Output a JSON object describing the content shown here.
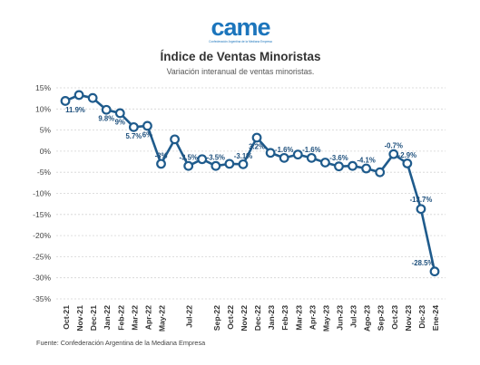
{
  "logo": {
    "wordmark": "came",
    "tagline": "Confederación Argentina de la Mediana Empresa"
  },
  "footer": {
    "source": "Fuente: Confederación Argentina de la Mediana Empresa"
  },
  "colors": {
    "line": "#1f5b8c",
    "marker_fill": "#ffffff",
    "label": "#1d4f7c",
    "grid": "#d4d4d4",
    "logo": "#1c75bc"
  },
  "chart_data": {
    "type": "line",
    "title": "Índice de Ventas Minoristas",
    "subtitle": "Variación interanual de ventas minoristas.",
    "xlabel": "",
    "ylabel": "",
    "categories": [
      "Oct-21",
      "Nov-21",
      "Dec-21",
      "Jan-22",
      "Feb-22",
      "Mar-22",
      "Apr-22",
      "May-22",
      "",
      "Jul-22",
      "",
      "Sep-22",
      "Oct-22",
      "Nov-22",
      "Dec-22",
      "Jan-23",
      "Feb-23",
      "Mar-23",
      "Apr-23",
      "May-23",
      "Jun-23",
      "Jul-23",
      "Ago-23",
      "Sep-23",
      "Oct-23",
      "Nov-23",
      "Dic-23",
      "Ene-24"
    ],
    "series": [
      {
        "values": [
          11.9,
          13.3,
          12.6,
          9.8,
          9,
          5.7,
          6,
          -3,
          2.8,
          -3.5,
          -1.9,
          -3.5,
          -3,
          -3.1,
          3.2,
          -0.4,
          -1.6,
          -0.8,
          -1.6,
          -2.7,
          -3.6,
          -3.5,
          -4.1,
          -5,
          -0.7,
          -2.9,
          -13.7,
          -28.5
        ],
        "data_labels": [
          "11.9%",
          "",
          "",
          "9.8%",
          "9%",
          "5.7%",
          "6%",
          "-3%",
          "",
          "-3.5%",
          "",
          "-3.5%",
          "",
          "-3.1%",
          "3.2%",
          "",
          "-1.6%",
          "",
          "-1.6%",
          "",
          "-3.6%",
          "",
          "-4.1%",
          "",
          "-0.7%",
          "-2.9%",
          "-13.7%",
          "-28.5%"
        ]
      }
    ],
    "ylim": [
      -35,
      15
    ],
    "y_ticks": [
      15,
      10,
      5,
      0,
      -5,
      -10,
      -15,
      -20,
      -25,
      -30,
      -35
    ],
    "y_tick_labels": [
      "15%",
      "10%",
      "5%",
      "0%",
      "-5%",
      "-10%",
      "-15%",
      "-20%",
      "-25%",
      "-30%",
      "-35%"
    ],
    "grid": true
  }
}
